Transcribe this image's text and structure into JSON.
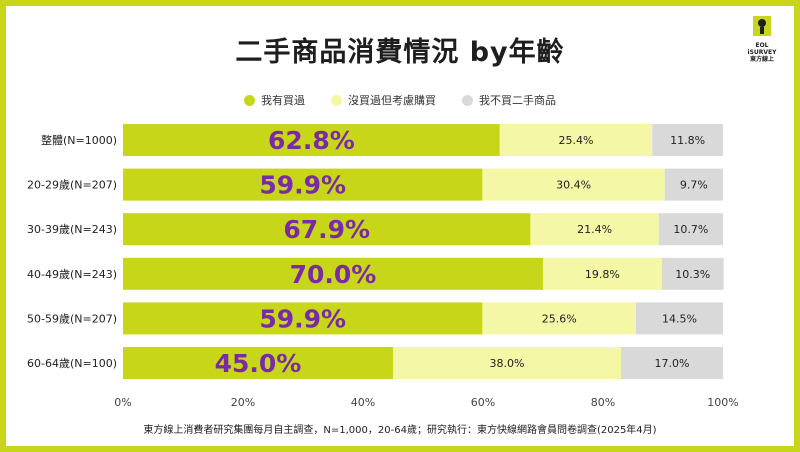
{
  "title": "二手商品消費情況  by年齡",
  "logo": {
    "line1": "EOL",
    "line2": "iSURVEY",
    "line3": "東方線上",
    "icon": "logo-mark-icon"
  },
  "colors": {
    "bought": "#c8d61a",
    "considered": "#f3f7a6",
    "never": "#d9d9d9",
    "big_label": "#7b2aa6",
    "frame": "#c8d61a"
  },
  "legend": [
    {
      "label": "我有買過",
      "color": "#c8d61a"
    },
    {
      "label": "沒買過但考慮購買",
      "color": "#f3f7a6"
    },
    {
      "label": "我不買二手商品",
      "color": "#d9d9d9"
    }
  ],
  "chart_data": {
    "type": "bar",
    "orientation": "horizontal",
    "stacked": true,
    "percent": true,
    "categories": [
      "整體(N=1000)",
      "20-29歲(N=207)",
      "30-39歲(N=243)",
      "40-49歲(N=243)",
      "50-59歲(N=207)",
      "60-64歲(N=100)"
    ],
    "series": [
      {
        "name": "我有買過",
        "values": [
          62.8,
          59.9,
          67.9,
          70.0,
          59.9,
          45.0
        ],
        "labels": [
          "62.8%",
          "59.9%",
          "67.9%",
          "70.0%",
          "59.9%",
          "45.0%"
        ]
      },
      {
        "name": "沒買過但考慮購買",
        "values": [
          25.4,
          30.4,
          21.4,
          19.8,
          25.6,
          38.0
        ],
        "labels": [
          "25.4%",
          "30.4%",
          "21.4%",
          "19.8%",
          "25.6%",
          "38.0%"
        ]
      },
      {
        "name": "我不買二手商品",
        "values": [
          11.8,
          9.7,
          10.7,
          10.3,
          14.5,
          17.0
        ],
        "labels": [
          "11.8%",
          "9.7%",
          "10.7%",
          "10.3%",
          "14.5%",
          "17.0%"
        ]
      }
    ],
    "xlim": [
      0,
      100
    ],
    "xticks": [
      "0%",
      "20%",
      "40%",
      "60%",
      "80%",
      "100%"
    ],
    "grid": false,
    "legend_position": "top"
  },
  "footnote": "東方線上消費者研究集團每月自主調查，N=1,000，20-64歲；研究執行：東方快線網路會員問卷調查(2025年4月)"
}
